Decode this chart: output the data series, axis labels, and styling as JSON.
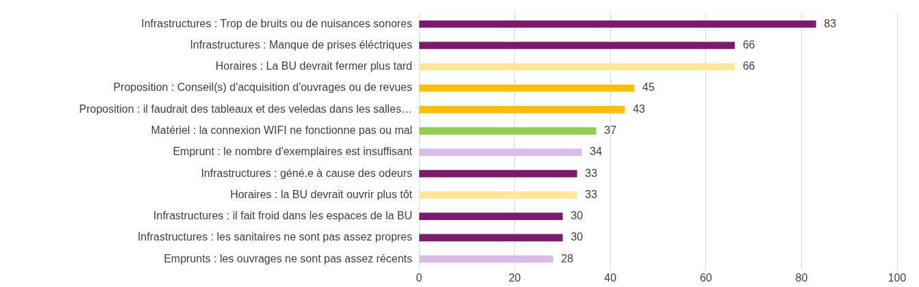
{
  "chart_data": {
    "type": "bar",
    "orientation": "horizontal",
    "categories": [
      "Infrastructures : Trop de bruits ou de nuisances sonores",
      "Infrastructures : Manque de prises éléctriques",
      "Horaires : La BU devrait fermer plus tard",
      "Proposition : Conseil(s) d'acquisition d'ouvrages ou de revues",
      "Proposition : il faudrait des tableaux et des veledas dans les salles…",
      "Matériel : la connexion WIFI ne fonctionne pas ou mal",
      "Emprunt : le nombre d'exemplaires est insuffisant",
      "Infrastructures : géné.e à cause des odeurs",
      "Horaires : la BU devrait ouvrir plus tôt",
      "Infrastructures : il fait froid dans les espaces de la BU",
      "Infrastructures : les sanitaires ne sont pas assez propres",
      "Emprunts : les ouvrages ne sont pas assez récents"
    ],
    "values": [
      83,
      66,
      66,
      45,
      43,
      37,
      34,
      33,
      33,
      30,
      30,
      28
    ],
    "colors": [
      "#7b1a6e",
      "#7b1a6e",
      "#ffe699",
      "#ffc000",
      "#ffc000",
      "#92d050",
      "#d9bce8",
      "#7b1a6e",
      "#ffe699",
      "#7b1a6e",
      "#7b1a6e",
      "#d9bce8"
    ],
    "xlim": [
      0,
      100
    ],
    "xticks": [
      0,
      20,
      40,
      60,
      80,
      100
    ],
    "grid": "x",
    "data_labels": true,
    "legend": false
  }
}
